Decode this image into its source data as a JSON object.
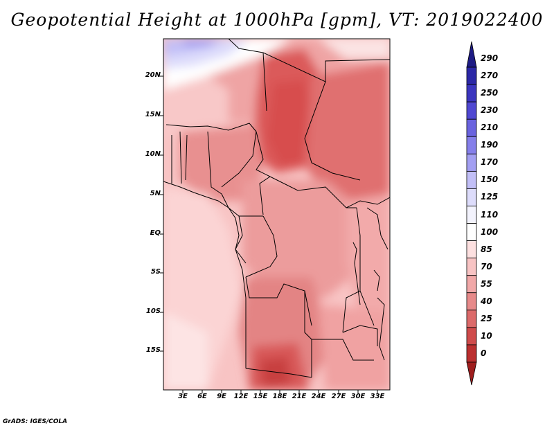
{
  "title": "Geopotential Height at 1000hPa [gpm], VT: 2019022400",
  "lat_labels": [
    "20N",
    "15N",
    "10N",
    "5N",
    "EQ",
    "5S",
    "10S",
    "15S"
  ],
  "lon_labels": [
    "3E",
    "6E",
    "9E",
    "12E",
    "15E",
    "18E",
    "21E",
    "24E",
    "27E",
    "30E",
    "33E"
  ],
  "colorbar": {
    "levels": [
      "290",
      "270",
      "250",
      "230",
      "210",
      "190",
      "170",
      "150",
      "125",
      "110",
      "100",
      "85",
      "70",
      "55",
      "40",
      "25",
      "10",
      "0"
    ],
    "colors": [
      "#1d1b84",
      "#2b27a6",
      "#3b35bf",
      "#5048d2",
      "#6a63df",
      "#857fea",
      "#a39ff2",
      "#c2bff7",
      "#dddcfb",
      "#f3f3fd",
      "#ffffff",
      "#fde0e0",
      "#f8c4c4",
      "#f1a8a8",
      "#e78a8a",
      "#dc6a6a",
      "#cf4b4b",
      "#bb2f2f",
      "#9e1d1d"
    ]
  },
  "credit": "GrADS: IGES/COLA"
}
